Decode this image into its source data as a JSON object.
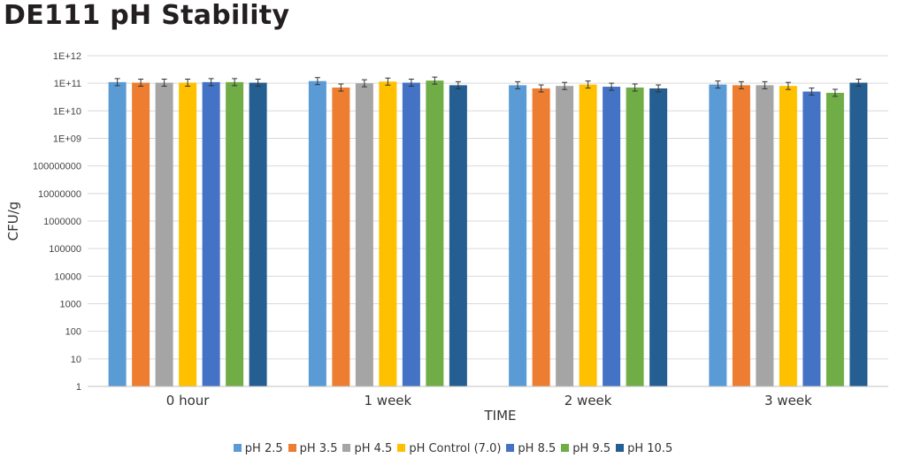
{
  "chart_data": {
    "type": "bar",
    "title": "DE111 pH Stability",
    "xlabel": "TIME",
    "ylabel": "CFU/g",
    "yscale": "log",
    "ylim": [
      1,
      1000000000000
    ],
    "ytick_labels": [
      "1",
      "10",
      "100",
      "1000",
      "10000",
      "100000",
      "1000000",
      "10000000",
      "100000000",
      "1E+09",
      "1E+10",
      "1E+11",
      "1E+12"
    ],
    "categories": [
      "0 hour",
      "1 week",
      "2 week",
      "3 week"
    ],
    "grid": true,
    "legend_position": "bottom",
    "error_bars": true,
    "series": [
      {
        "name": "pH 2.5",
        "color": "#5b9bd5",
        "values": [
          110000000000,
          120000000000,
          85000000000,
          90000000000
        ]
      },
      {
        "name": "pH 3.5",
        "color": "#ed7d31",
        "values": [
          105000000000,
          70000000000,
          65000000000,
          85000000000
        ]
      },
      {
        "name": "pH 4.5",
        "color": "#a5a5a5",
        "values": [
          105000000000,
          100000000000,
          80000000000,
          85000000000
        ]
      },
      {
        "name": "pH Control (7.0)",
        "color": "#ffc000",
        "values": [
          105000000000,
          115000000000,
          90000000000,
          80000000000
        ]
      },
      {
        "name": "pH 8.5",
        "color": "#4472c4",
        "values": [
          110000000000,
          105000000000,
          75000000000,
          50000000000
        ]
      },
      {
        "name": "pH 9.5",
        "color": "#70ad47",
        "values": [
          110000000000,
          125000000000,
          70000000000,
          45000000000
        ]
      },
      {
        "name": "pH 10.5",
        "color": "#255e91",
        "values": [
          105000000000,
          85000000000,
          65000000000,
          105000000000
        ]
      }
    ]
  }
}
